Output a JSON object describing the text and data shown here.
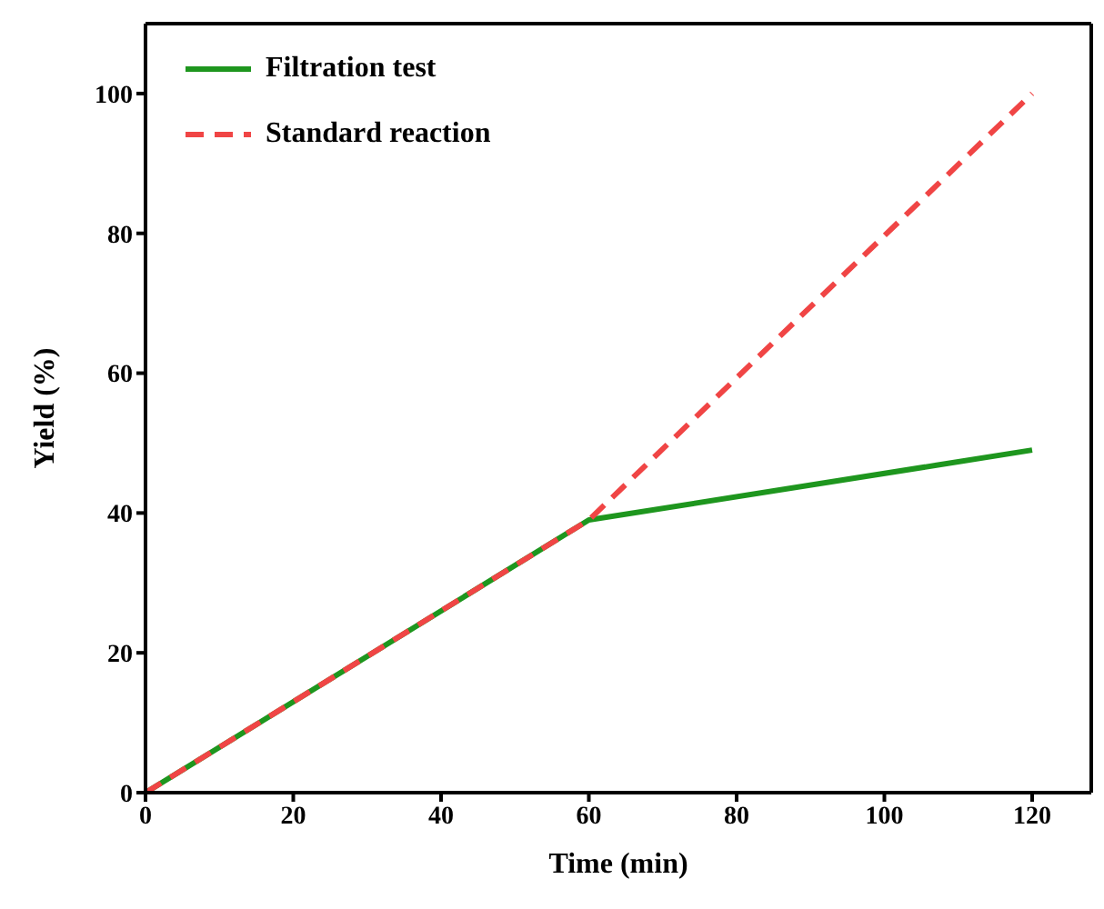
{
  "chart_data": {
    "type": "line",
    "xlabel": "Time (min)",
    "ylabel": "Yield (%)",
    "xlim": [
      0,
      128
    ],
    "xticks": [
      0,
      20,
      40,
      60,
      80,
      100,
      120
    ],
    "ylim": [
      0,
      110
    ],
    "yticks": [
      0,
      20,
      40,
      60,
      80,
      100
    ],
    "grid": false,
    "legend": "top left",
    "marker": "none",
    "series": [
      {
        "name": "Filtration test",
        "color": "#1e961e",
        "line_style": "solid",
        "x": [
          0,
          60,
          120
        ],
        "values": [
          0,
          39,
          49
        ]
      },
      {
        "name": "Standard reaction",
        "color": "#f04545",
        "line_style": "dashed",
        "x": [
          0,
          60,
          120
        ],
        "values": [
          0,
          39,
          100
        ]
      }
    ]
  }
}
